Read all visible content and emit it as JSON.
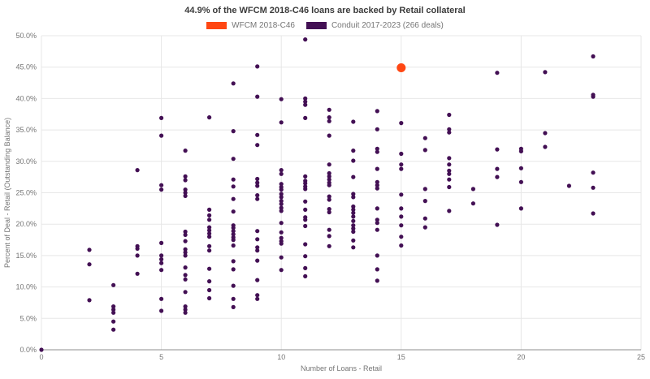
{
  "title": "44.9% of the WFCM 2018-C46 loans are backed by Retail collateral",
  "legend": [
    {
      "label": "WFCM 2018-C46",
      "color": "#ff4713"
    },
    {
      "label": "Conduit 2017-2023 (266 deals)",
      "color": "#431054"
    }
  ],
  "colors": {
    "wfcm_orange": "#ff4713",
    "conduit_purple": "#431054",
    "gridline": "#e7e7e7",
    "axis_line": "#8f8f8f",
    "text_gray": "#757575"
  },
  "chart_data": {
    "type": "scatter",
    "title": "44.9% of the WFCM 2018-C46 loans are backed by Retail collateral",
    "xlabel": "Number of Loans - Retail",
    "ylabel": "Percent of Deal - Retail (Outstanding Balance)",
    "xlim": [
      0,
      25
    ],
    "ylim": [
      0,
      50
    ],
    "grid": true,
    "legend_position": "top-center",
    "x_ticks": [
      0,
      5,
      10,
      15,
      20,
      25
    ],
    "x_tick_labels": [
      "0",
      "5",
      "10",
      "15",
      "20",
      "25"
    ],
    "y_ticks": [
      0,
      5,
      10,
      15,
      20,
      25,
      30,
      35,
      40,
      45,
      50
    ],
    "y_tick_labels": [
      "0.0%",
      "5.0%",
      "10.0%",
      "15.0%",
      "20.0%",
      "25.0%",
      "30.0%",
      "35.0%",
      "40.0%",
      "45.0%",
      "50.0%"
    ],
    "series": [
      {
        "name": "Conduit 2017-2023 (266 deals)",
        "color": "#431054",
        "marker_size": 5.2,
        "points": [
          [
            0,
            0.0
          ],
          [
            2,
            15.9
          ],
          [
            2,
            13.6
          ],
          [
            2,
            7.9
          ],
          [
            3,
            10.3
          ],
          [
            3,
            6.9
          ],
          [
            3,
            6.4
          ],
          [
            3,
            5.9
          ],
          [
            3,
            4.5
          ],
          [
            3,
            3.2
          ],
          [
            4,
            28.6
          ],
          [
            4,
            16.5
          ],
          [
            4,
            16.1
          ],
          [
            4,
            15.0
          ],
          [
            4,
            12.1
          ],
          [
            5,
            36.9
          ],
          [
            5,
            34.1
          ],
          [
            5,
            26.2
          ],
          [
            5,
            25.5
          ],
          [
            5,
            17.0
          ],
          [
            5,
            15.0
          ],
          [
            5,
            14.4
          ],
          [
            5,
            13.8
          ],
          [
            5,
            12.7
          ],
          [
            5,
            8.1
          ],
          [
            5,
            6.2
          ],
          [
            6,
            31.7
          ],
          [
            6,
            27.6
          ],
          [
            6,
            27.0
          ],
          [
            6,
            25.5
          ],
          [
            6,
            25.0
          ],
          [
            6,
            24.5
          ],
          [
            6,
            18.8
          ],
          [
            6,
            18.3
          ],
          [
            6,
            17.3
          ],
          [
            6,
            16.0
          ],
          [
            6,
            15.5
          ],
          [
            6,
            15.0
          ],
          [
            6,
            13.1
          ],
          [
            6,
            11.9
          ],
          [
            6,
            11.2
          ],
          [
            6,
            9.2
          ],
          [
            6,
            6.9
          ],
          [
            6,
            6.4
          ],
          [
            6,
            5.9
          ],
          [
            7,
            37.0
          ],
          [
            7,
            22.3
          ],
          [
            7,
            21.4
          ],
          [
            7,
            20.7
          ],
          [
            7,
            19.5
          ],
          [
            7,
            19.0
          ],
          [
            7,
            18.5
          ],
          [
            7,
            18.0
          ],
          [
            7,
            16.5
          ],
          [
            7,
            15.8
          ],
          [
            7,
            12.9
          ],
          [
            7,
            10.9
          ],
          [
            7,
            9.5
          ],
          [
            7,
            8.2
          ],
          [
            8,
            42.4
          ],
          [
            8,
            34.8
          ],
          [
            8,
            30.4
          ],
          [
            8,
            27.1
          ],
          [
            8,
            26.0
          ],
          [
            8,
            24.0
          ],
          [
            8,
            22.0
          ],
          [
            8,
            19.8
          ],
          [
            8,
            19.4
          ],
          [
            8,
            18.9
          ],
          [
            8,
            18.4
          ],
          [
            8,
            17.9
          ],
          [
            8,
            17.5
          ],
          [
            8,
            16.6
          ],
          [
            8,
            14.1
          ],
          [
            8,
            12.8
          ],
          [
            8,
            10.2
          ],
          [
            8,
            8.1
          ],
          [
            8,
            6.8
          ],
          [
            9,
            45.1
          ],
          [
            9,
            40.3
          ],
          [
            9,
            34.2
          ],
          [
            9,
            32.6
          ],
          [
            9,
            27.2
          ],
          [
            9,
            26.6
          ],
          [
            9,
            26.1
          ],
          [
            9,
            24.6
          ],
          [
            9,
            24.0
          ],
          [
            9,
            18.9
          ],
          [
            9,
            17.6
          ],
          [
            9,
            16.3
          ],
          [
            9,
            15.8
          ],
          [
            9,
            14.2
          ],
          [
            9,
            11.1
          ],
          [
            9,
            8.7
          ],
          [
            9,
            8.1
          ],
          [
            10,
            39.9
          ],
          [
            10,
            36.2
          ],
          [
            10,
            28.6
          ],
          [
            10,
            28.0
          ],
          [
            10,
            26.4
          ],
          [
            10,
            25.9
          ],
          [
            10,
            25.5
          ],
          [
            10,
            24.8
          ],
          [
            10,
            24.3
          ],
          [
            10,
            23.7
          ],
          [
            10,
            23.2
          ],
          [
            10,
            22.6
          ],
          [
            10,
            22.1
          ],
          [
            10,
            20.2
          ],
          [
            10,
            18.7
          ],
          [
            10,
            17.8
          ],
          [
            10,
            17.3
          ],
          [
            10,
            16.9
          ],
          [
            10,
            14.7
          ],
          [
            10,
            12.7
          ],
          [
            11,
            49.4
          ],
          [
            11,
            40.0
          ],
          [
            11,
            39.5
          ],
          [
            11,
            39.0
          ],
          [
            11,
            36.9
          ],
          [
            11,
            27.6
          ],
          [
            11,
            26.9
          ],
          [
            11,
            26.5
          ],
          [
            11,
            26.0
          ],
          [
            11,
            25.6
          ],
          [
            11,
            23.6
          ],
          [
            11,
            22.3
          ],
          [
            11,
            21.1
          ],
          [
            11,
            20.7
          ],
          [
            11,
            19.7
          ],
          [
            11,
            16.8
          ],
          [
            11,
            14.9
          ],
          [
            11,
            13.0
          ],
          [
            11,
            11.7
          ],
          [
            12,
            38.2
          ],
          [
            12,
            37.0
          ],
          [
            12,
            36.4
          ],
          [
            12,
            34.1
          ],
          [
            12,
            29.5
          ],
          [
            12,
            28.1
          ],
          [
            12,
            27.6
          ],
          [
            12,
            27.1
          ],
          [
            12,
            26.6
          ],
          [
            12,
            26.2
          ],
          [
            12,
            24.4
          ],
          [
            12,
            23.9
          ],
          [
            12,
            22.4
          ],
          [
            12,
            21.9
          ],
          [
            12,
            19.1
          ],
          [
            12,
            18.1
          ],
          [
            12,
            16.5
          ],
          [
            13,
            36.3
          ],
          [
            13,
            31.7
          ],
          [
            13,
            30.1
          ],
          [
            13,
            27.5
          ],
          [
            13,
            24.8
          ],
          [
            13,
            24.3
          ],
          [
            13,
            22.8
          ],
          [
            13,
            22.3
          ],
          [
            13,
            21.8
          ],
          [
            13,
            21.2
          ],
          [
            13,
            20.5
          ],
          [
            13,
            19.8
          ],
          [
            13,
            19.3
          ],
          [
            13,
            18.8
          ],
          [
            13,
            17.4
          ],
          [
            13,
            16.3
          ],
          [
            14,
            38.0
          ],
          [
            14,
            35.1
          ],
          [
            14,
            32.0
          ],
          [
            14,
            31.5
          ],
          [
            14,
            28.8
          ],
          [
            14,
            26.7
          ],
          [
            14,
            26.2
          ],
          [
            14,
            25.7
          ],
          [
            14,
            22.5
          ],
          [
            14,
            20.7
          ],
          [
            14,
            20.2
          ],
          [
            14,
            19.1
          ],
          [
            14,
            15.0
          ],
          [
            14,
            12.8
          ],
          [
            14,
            11.0
          ],
          [
            15,
            36.1
          ],
          [
            15,
            31.2
          ],
          [
            15,
            29.5
          ],
          [
            15,
            28.8
          ],
          [
            15,
            24.7
          ],
          [
            15,
            22.5
          ],
          [
            15,
            21.2
          ],
          [
            15,
            19.8
          ],
          [
            15,
            18.0
          ],
          [
            15,
            16.6
          ],
          [
            16,
            33.7
          ],
          [
            16,
            31.8
          ],
          [
            16,
            25.6
          ],
          [
            16,
            23.7
          ],
          [
            16,
            20.9
          ],
          [
            16,
            19.5
          ],
          [
            17,
            37.4
          ],
          [
            17,
            35.1
          ],
          [
            17,
            34.6
          ],
          [
            17,
            30.5
          ],
          [
            17,
            29.5
          ],
          [
            17,
            28.5
          ],
          [
            17,
            28.0
          ],
          [
            17,
            27.1
          ],
          [
            17,
            25.9
          ],
          [
            17,
            22.1
          ],
          [
            18,
            25.6
          ],
          [
            18,
            23.3
          ],
          [
            19,
            44.1
          ],
          [
            19,
            31.9
          ],
          [
            19,
            28.8
          ],
          [
            19,
            27.5
          ],
          [
            19,
            19.9
          ],
          [
            20,
            32.0
          ],
          [
            20,
            31.6
          ],
          [
            20,
            28.9
          ],
          [
            20,
            26.7
          ],
          [
            20,
            22.5
          ],
          [
            21,
            44.2
          ],
          [
            21,
            34.5
          ],
          [
            21,
            32.3
          ],
          [
            22,
            26.1
          ],
          [
            23,
            46.7
          ],
          [
            23,
            40.6
          ],
          [
            23,
            40.3
          ],
          [
            23,
            28.2
          ],
          [
            23,
            25.8
          ],
          [
            23,
            21.7
          ]
        ]
      },
      {
        "name": "WFCM 2018-C46",
        "color": "#ff4713",
        "marker_size": 11,
        "points": [
          [
            15,
            44.9
          ]
        ]
      }
    ]
  }
}
